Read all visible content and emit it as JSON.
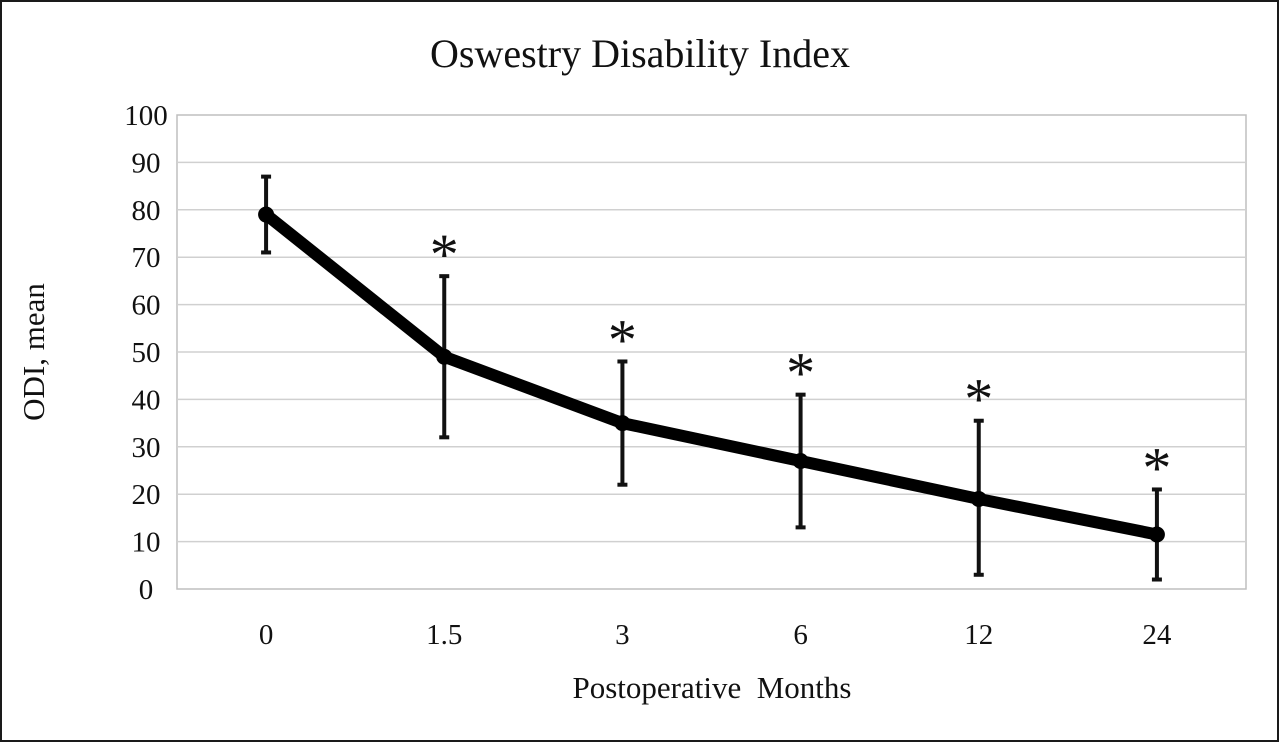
{
  "chart_data": {
    "type": "line",
    "title": "Oswestry Disability Index",
    "xlabel": "Postoperative  Months",
    "ylabel": "ODI, mean",
    "categories": [
      "0",
      "1.5",
      "3",
      "6",
      "12",
      "24"
    ],
    "series": [
      {
        "values": [
          79,
          49,
          35,
          27,
          19,
          11.5
        ],
        "error_upper": [
          87,
          66,
          48,
          41,
          35.5,
          21
        ],
        "error_lower": [
          71,
          32,
          22,
          13,
          3,
          2
        ],
        "significance_marks": [
          "",
          "*",
          "*",
          "*",
          "*",
          "*"
        ]
      }
    ],
    "ylim": [
      0,
      100
    ],
    "yticks": [
      0,
      10,
      20,
      30,
      40,
      50,
      60,
      70,
      80,
      90,
      100
    ],
    "grid": true,
    "legend": "none",
    "colors": {
      "line": "#000000",
      "grid": "#d0d0d0",
      "frame": "#1a1a1a"
    }
  }
}
